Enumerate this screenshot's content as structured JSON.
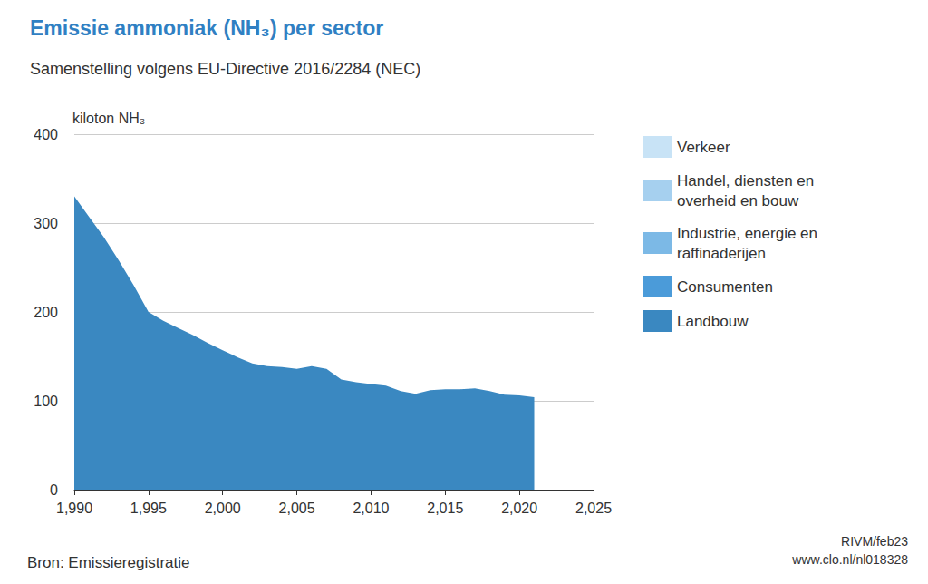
{
  "chart_data": {
    "type": "area",
    "title": "Emissie ammoniak (NH₃) per sector",
    "subtitle": "Samenstelling volgens EU-Directive 2016/2284 (NEC)",
    "ylabel": "kiloton NH₃",
    "annotations": [
      "Bron: Emissieregistratie",
      "RIVM/feb23",
      "www.clo.nl/nl018328"
    ],
    "x": [
      1990,
      1991,
      1992,
      1993,
      1994,
      1995,
      1996,
      1997,
      1998,
      1999,
      2000,
      2001,
      2002,
      2003,
      2004,
      2005,
      2006,
      2007,
      2008,
      2009,
      2010,
      2011,
      2012,
      2013,
      2014,
      2015,
      2016,
      2017,
      2018,
      2019,
      2020,
      2021
    ],
    "series": [
      {
        "name": "Verkeer",
        "color": "#c8e3f6",
        "values": [
          1,
          1,
          2,
          2,
          3,
          3,
          3,
          3,
          3,
          3,
          3,
          3,
          3,
          2,
          2,
          2,
          2,
          2,
          2,
          2,
          2,
          2,
          2,
          2,
          2,
          2,
          2,
          2,
          2,
          2,
          2,
          2
        ]
      },
      {
        "name": "Handel, diensten en overheid en bouw",
        "color": "#a6d0ef",
        "values": [
          1,
          1,
          1,
          1,
          1,
          1,
          1,
          1,
          1,
          1,
          1,
          1,
          1,
          1,
          1,
          1,
          1,
          1,
          1,
          1,
          1,
          1,
          1,
          1,
          1,
          1,
          1,
          1,
          1,
          1,
          1,
          1
        ]
      },
      {
        "name": "Industrie, energie en raffinaderijen",
        "color": "#7cb9e6",
        "values": [
          5,
          5,
          5,
          5,
          5,
          4,
          4,
          4,
          4,
          4,
          4,
          4,
          4,
          4,
          4,
          4,
          4,
          4,
          3,
          3,
          3,
          3,
          3,
          3,
          3,
          3,
          3,
          3,
          3,
          3,
          3,
          3
        ]
      },
      {
        "name": "Consumenten",
        "color": "#4b9bd9",
        "values": [
          8,
          8,
          8,
          8,
          8,
          8,
          8,
          8,
          8,
          8,
          8,
          8,
          8,
          8,
          8,
          8,
          8,
          8,
          8,
          8,
          8,
          8,
          8,
          8,
          8,
          8,
          8,
          8,
          8,
          8,
          9,
          9
        ]
      },
      {
        "name": "Landbouw",
        "color": "#3a88c1",
        "values": [
          330,
          307,
          284,
          258,
          230,
          200,
          190,
          182,
          174,
          165,
          157,
          149,
          142,
          139,
          138,
          136,
          139,
          136,
          124,
          121,
          119,
          117,
          111,
          108,
          112,
          113,
          113,
          114,
          111,
          107,
          106,
          104
        ]
      }
    ],
    "xlim": [
      1990,
      2025
    ],
    "xticks": [
      1990,
      1995,
      2000,
      2005,
      2010,
      2015,
      2020,
      2025
    ],
    "ylim": [
      0,
      400
    ],
    "yticks": [
      0,
      100,
      200,
      300,
      400
    ],
    "stacked": true,
    "grid": true,
    "legend": "right"
  }
}
